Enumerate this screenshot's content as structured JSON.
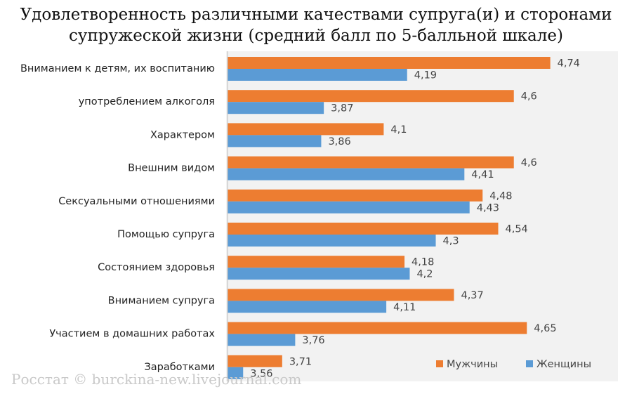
{
  "chart_data": {
    "type": "bar",
    "orientation": "horizontal",
    "title_lines": [
      "Удовлетворенность различными качествами супруга(и) и сторонами",
      "супружеской жизни (средний балл по 5-балльной шкале)"
    ],
    "categories": [
      "Вниманием к детям, их воспитанию",
      "употреблением алкоголя",
      "Характером",
      "Внешним видом",
      "Сексуальными отношениями",
      "Помощью супруга",
      "Состоянием здоровья",
      "Вниманием супруга",
      "Участием в домашних работах",
      "Заработками"
    ],
    "series": [
      {
        "name": "Мужчины",
        "color": "#ED7D31",
        "values": [
          4.74,
          4.6,
          4.1,
          4.6,
          4.48,
          4.54,
          4.18,
          4.37,
          4.65,
          3.71
        ],
        "labels": [
          "4,74",
          "4,6",
          "4,1",
          "4,6",
          "4,48",
          "4,54",
          "4,18",
          "4,37",
          "4,65",
          "3,71"
        ]
      },
      {
        "name": "Женщины",
        "color": "#5B9BD5",
        "values": [
          4.19,
          3.87,
          3.86,
          4.41,
          4.43,
          4.3,
          4.2,
          4.11,
          3.76,
          3.56
        ],
        "labels": [
          "4,19",
          "3,87",
          "3,86",
          "4,41",
          "4,43",
          "4,3",
          "4,2",
          "4,11",
          "3,76",
          "3,56"
        ]
      }
    ],
    "xlim": [
      3.5,
      5.0
    ],
    "grid": false,
    "legend": "bottom-right",
    "plot_background": "#F2F2F2"
  },
  "watermark": "Росстат © burckina-new.livejournal.com"
}
